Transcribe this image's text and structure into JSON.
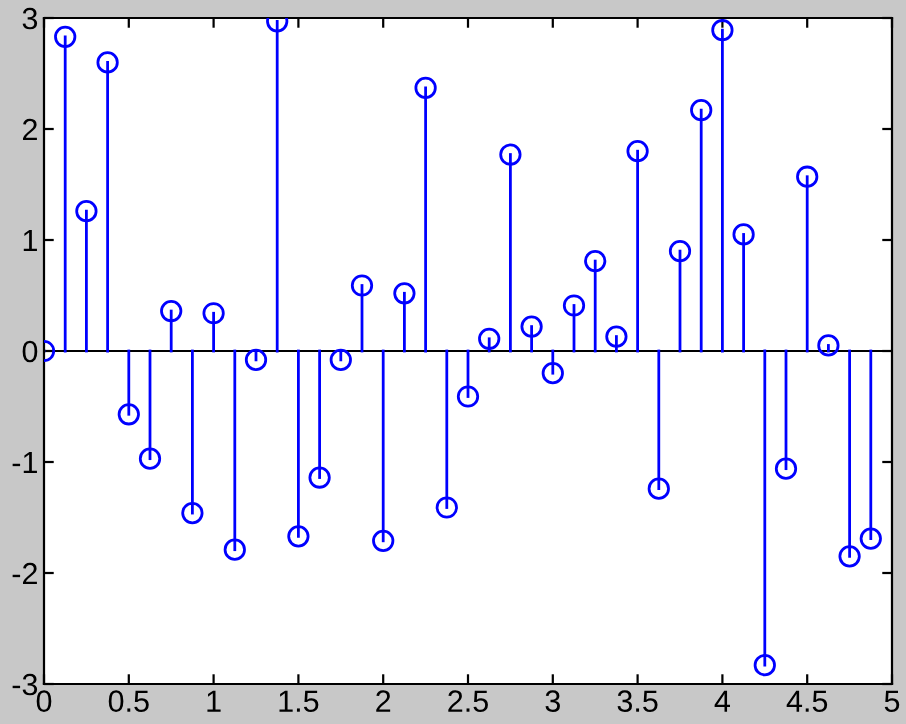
{
  "chart_data": {
    "type": "lollipop",
    "color": "#0000ff",
    "marker": "circle",
    "grid": false,
    "legend": false,
    "x": [
      0,
      0.125,
      0.25,
      0.375,
      0.5,
      0.625,
      0.75,
      0.875,
      1.0,
      1.125,
      1.25,
      1.375,
      1.5,
      1.625,
      1.75,
      1.875,
      2.0,
      2.125,
      2.25,
      2.375,
      2.5,
      2.625,
      2.75,
      2.875,
      3.0,
      3.125,
      3.25,
      3.375,
      3.5,
      3.625,
      3.75,
      3.875,
      4.0,
      4.125,
      4.25,
      4.375,
      4.5,
      4.625,
      4.75,
      4.875
    ],
    "values": [
      0,
      2.83,
      1.26,
      2.6,
      -0.57,
      -0.97,
      0.36,
      -1.46,
      0.34,
      -1.79,
      -0.08,
      2.97,
      -1.67,
      -1.14,
      -0.08,
      0.59,
      -1.71,
      0.52,
      2.37,
      -1.41,
      -0.41,
      0.11,
      1.77,
      0.22,
      -0.2,
      0.41,
      0.81,
      0.13,
      1.8,
      -1.24,
      0.9,
      2.17,
      2.89,
      1.05,
      -2.83,
      -1.06,
      1.57,
      0.05,
      -1.85,
      -1.69
    ],
    "xlim": [
      0,
      5
    ],
    "ylim": [
      -3,
      3
    ],
    "xticks": [
      0,
      0.5,
      1,
      1.5,
      2,
      2.5,
      3,
      3.5,
      4,
      4.5,
      5
    ],
    "yticks": [
      -3,
      -2,
      -1,
      0,
      1,
      2,
      3
    ],
    "ref_lines": [
      {
        "axis": "y",
        "value": 0,
        "color": "#000000"
      }
    ]
  }
}
